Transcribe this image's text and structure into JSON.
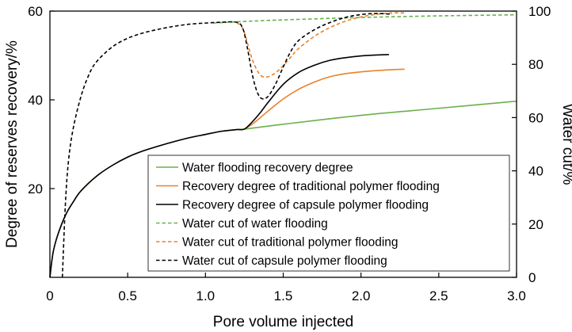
{
  "chart_data": {
    "type": "line",
    "title": "",
    "xlabel": "Pore volume injected",
    "ylabel_left": "Degree of reserves recovery/%",
    "ylabel_right": "Water cut/%",
    "xlim": [
      0,
      3.0
    ],
    "ylim_left": [
      0,
      60
    ],
    "ylim_right": [
      0,
      100
    ],
    "x_ticks": [
      0,
      0.5,
      1.0,
      1.5,
      2.0,
      2.5,
      3.0
    ],
    "x_tick_labels": [
      "0",
      "0.5",
      "1.0",
      "1.5",
      "2.0",
      "2.5",
      "3.0"
    ],
    "y_left_ticks": [
      20,
      40,
      60
    ],
    "y_left_tick_labels": [
      "20",
      "40",
      "60"
    ],
    "y_right_ticks": [
      0,
      20,
      40,
      60,
      80,
      100
    ],
    "y_right_tick_labels": [
      "0",
      "20",
      "40",
      "60",
      "80",
      "100"
    ],
    "grid": false,
    "legend_position": "lower-right",
    "colors": {
      "water": "#6ab04c",
      "traditional": "#e8832a",
      "capsule": "#000000"
    },
    "series": [
      {
        "name": "Water flooding recovery degree",
        "axis": "left",
        "style": "solid",
        "color_key": "water",
        "x": [
          0,
          0.02,
          0.05,
          0.1,
          0.15,
          0.2,
          0.3,
          0.4,
          0.5,
          0.6,
          0.7,
          0.8,
          0.9,
          1.0,
          1.1,
          1.2,
          1.25,
          1.5,
          2.0,
          2.5,
          3.0
        ],
        "y": [
          0,
          5.5,
          9.5,
          14,
          17,
          19.5,
          22.8,
          25.2,
          27.1,
          28.5,
          29.6,
          30.6,
          31.5,
          32.2,
          32.9,
          33.3,
          33.4,
          34.5,
          36.5,
          38.1,
          39.7
        ]
      },
      {
        "name": "Recovery degree of traditional polymer flooding",
        "axis": "left",
        "style": "solid",
        "color_key": "traditional",
        "x": [
          1.25,
          1.3,
          1.35,
          1.4,
          1.5,
          1.6,
          1.7,
          1.8,
          1.9,
          2.0,
          2.1,
          2.2,
          2.28
        ],
        "y": [
          33.4,
          34.5,
          35.9,
          37.4,
          40.2,
          42.4,
          44.0,
          45.2,
          45.9,
          46.3,
          46.6,
          46.8,
          46.9
        ]
      },
      {
        "name": "Recovery degree of capsule polymer flooding",
        "axis": "left",
        "style": "solid",
        "color_key": "capsule",
        "x": [
          0,
          0.02,
          0.05,
          0.1,
          0.15,
          0.2,
          0.3,
          0.4,
          0.5,
          0.6,
          0.7,
          0.8,
          0.9,
          1.0,
          1.1,
          1.2,
          1.25,
          1.3,
          1.35,
          1.4,
          1.5,
          1.6,
          1.7,
          1.8,
          1.9,
          2.0,
          2.1,
          2.18
        ],
        "y": [
          0,
          5.5,
          9.5,
          14,
          17,
          19.5,
          22.8,
          25.2,
          27.1,
          28.5,
          29.6,
          30.6,
          31.5,
          32.2,
          32.9,
          33.3,
          33.4,
          35.0,
          37.0,
          39.3,
          43.5,
          46.2,
          47.8,
          48.9,
          49.5,
          49.9,
          50.1,
          50.2
        ]
      },
      {
        "name": "Water cut of water flooding",
        "axis": "right",
        "style": "dashed",
        "color_key": "water",
        "x": [
          1.05,
          1.25,
          1.5,
          2.0,
          2.5,
          3.0
        ],
        "y": [
          95.5,
          96.1,
          96.7,
          97.6,
          98.2,
          98.6
        ]
      },
      {
        "name": "Water cut of traditional polymer flooding",
        "axis": "right",
        "style": "dashed",
        "color_key": "traditional",
        "x": [
          1.2,
          1.24,
          1.27,
          1.3,
          1.33,
          1.36,
          1.4,
          1.45,
          1.5,
          1.55,
          1.6,
          1.7,
          1.8,
          1.9,
          2.0,
          2.1,
          2.2,
          2.28
        ],
        "y": [
          95.8,
          93.5,
          88.0,
          82.0,
          78.0,
          75.6,
          75.3,
          76.8,
          79.5,
          82.8,
          86.0,
          90.5,
          93.8,
          96.2,
          97.8,
          98.8,
          99.3,
          99.3
        ]
      },
      {
        "name": "Water cut of capsule polymer flooding",
        "axis": "right",
        "style": "dashed",
        "color_key": "capsule",
        "x": [
          0.08,
          0.1,
          0.12,
          0.15,
          0.2,
          0.25,
          0.3,
          0.4,
          0.5,
          0.6,
          0.7,
          0.8,
          0.9,
          1.0,
          1.1,
          1.2,
          1.24,
          1.27,
          1.3,
          1.33,
          1.36,
          1.4,
          1.45,
          1.5,
          1.55,
          1.6,
          1.7,
          1.8,
          1.9,
          2.0,
          2.1,
          2.2
        ],
        "y": [
          0,
          28,
          44,
          56,
          68,
          76,
          81,
          86.5,
          89.8,
          91.8,
          93.2,
          94.3,
          95.1,
          95.5,
          95.8,
          95.8,
          93.5,
          86.0,
          76.5,
          70.0,
          67.2,
          67.8,
          72.5,
          79.0,
          85.0,
          89.0,
          93.0,
          95.7,
          97.6,
          98.7,
          99.1,
          98.8
        ]
      }
    ]
  }
}
